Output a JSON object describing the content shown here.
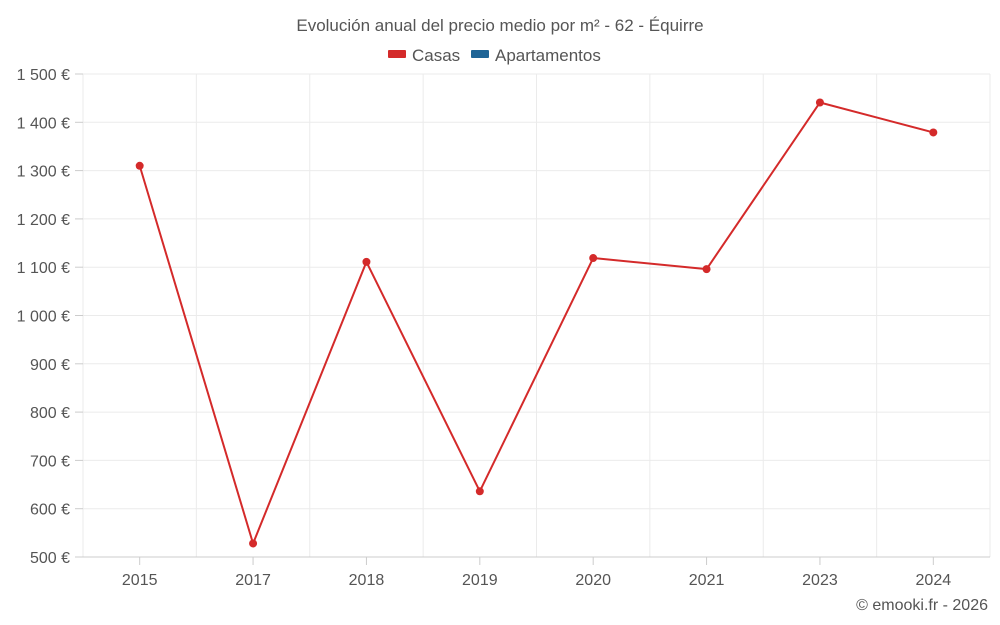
{
  "chart_data": {
    "type": "line",
    "title": "Evolución anual del precio medio por m² - 62 - Équirre",
    "categories": [
      "2015",
      "2017",
      "2018",
      "2019",
      "2020",
      "2021",
      "2023",
      "2024"
    ],
    "series": [
      {
        "name": "Casas",
        "color": "#d42a2a",
        "values": [
          1310,
          528,
          1111,
          636,
          1119,
          1096,
          1441,
          1379
        ]
      },
      {
        "name": "Apartamentos",
        "color": "#1e6496",
        "values": [
          null,
          null,
          null,
          null,
          null,
          null,
          null,
          null
        ]
      }
    ],
    "ylim": [
      500,
      1500
    ],
    "yticks": [
      "500 €",
      "600 €",
      "700 €",
      "800 €",
      "900 €",
      "1 000 €",
      "1 100 €",
      "1 200 €",
      "1 300 €",
      "1 400 €",
      "1 500 €"
    ],
    "grid": true,
    "legend_position": "top-center",
    "footer": "© emooki.fr - 2026"
  }
}
